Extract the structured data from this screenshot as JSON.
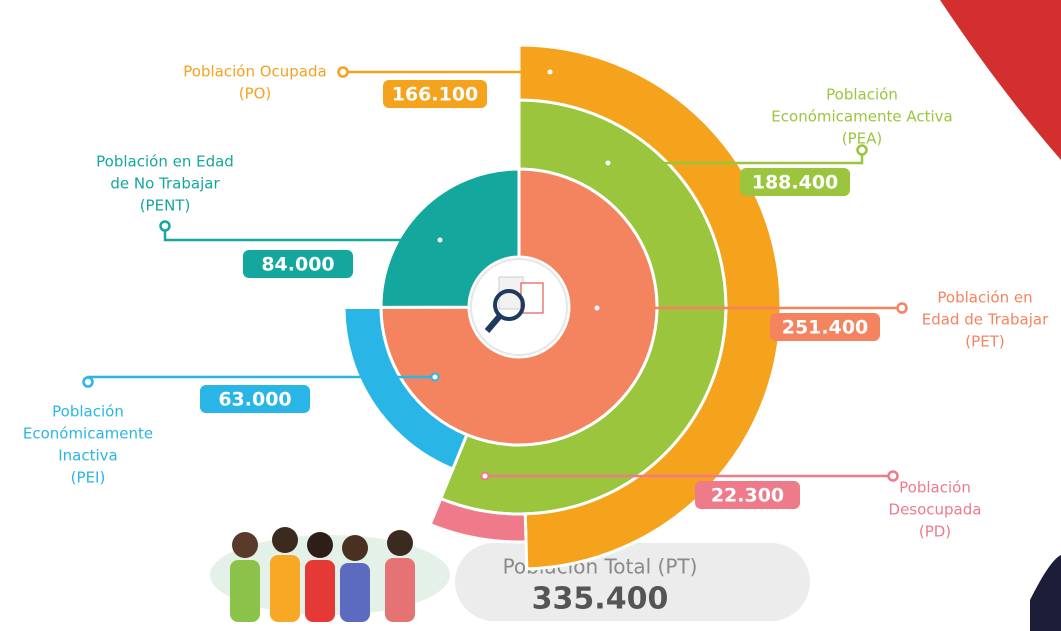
{
  "chart_data": {
    "type": "sunburst",
    "total": {
      "label": "Población Total (PT)",
      "value": 335400,
      "value_label": "335.400"
    },
    "rings": [
      {
        "segments": [
          {
            "name_lines": [
              "Población en",
              "Edad de Trabajar",
              "(PET)"
            ],
            "value": 251400,
            "value_label": "251.400",
            "color": "#f4845f"
          },
          {
            "name_lines": [
              "Población en Edad",
              "de No Trabajar",
              "(PENT)"
            ],
            "value": 84000,
            "value_label": "84.000",
            "color": "#14a79d"
          }
        ]
      },
      {
        "segments": [
          {
            "name_lines": [
              "Población",
              "Económicamente Activa",
              "(PEA)"
            ],
            "value": 188400,
            "value_label": "188.400",
            "color": "#9bc53d"
          },
          {
            "name_lines": [
              "Población",
              "Económicamente",
              "Inactiva",
              "(PEI)"
            ],
            "value": 63000,
            "value_label": "63.000",
            "color": "#29b6e6"
          }
        ]
      },
      {
        "segments": [
          {
            "name_lines": [
              "Población Ocupada",
              "(PO)"
            ],
            "value": 166100,
            "value_label": "166.100",
            "color": "#f5a21d"
          },
          {
            "name_lines": [
              "Población",
              "Desocupada",
              "(PD)"
            ],
            "value": 22300,
            "value_label": "22.300",
            "color": "#ef7a8a"
          }
        ]
      }
    ]
  }
}
